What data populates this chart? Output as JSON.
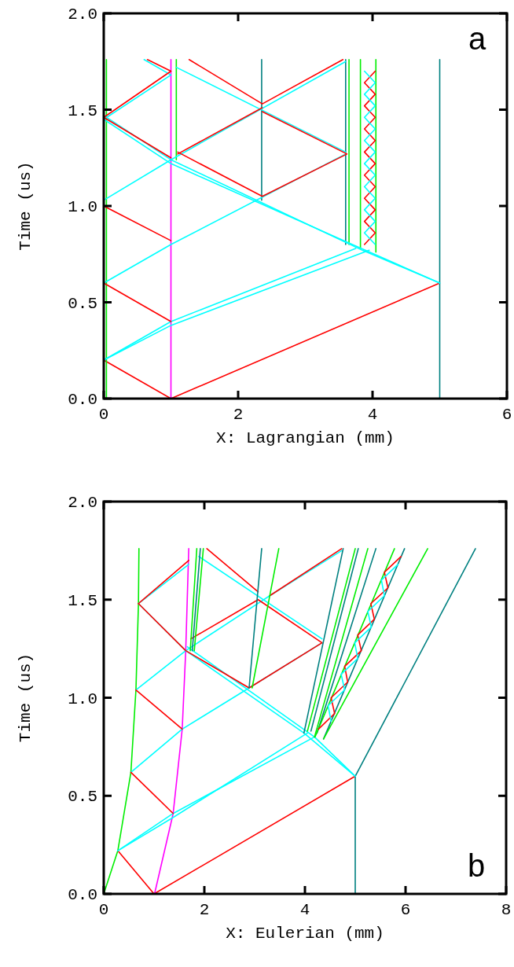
{
  "chart_data": [
    {
      "type": "line",
      "xlabel": "X: Lagrangian (mm)",
      "ylabel": "Time (us)",
      "xlim": [
        0,
        6
      ],
      "ylim": [
        0,
        2
      ],
      "xticks": [
        0,
        2,
        4,
        6
      ],
      "yticks": [
        {
          "value": 0,
          "label": "0.0"
        },
        {
          "value": 0.5,
          "label": "0.5"
        },
        {
          "value": 1,
          "label": "1.0"
        },
        {
          "value": 1.5,
          "label": "1.5"
        },
        {
          "value": 2,
          "label": "2.0"
        }
      ],
      "marker": "none",
      "line_style": "solid",
      "annotations": [
        "a"
      ],
      "series": [
        {
          "color": "#ff0000",
          "x": [
            1,
            5
          ],
          "values": [
            0,
            0.6
          ]
        },
        {
          "color": "#ff0000",
          "x": [
            1,
            0
          ],
          "values": [
            0,
            0.2
          ]
        },
        {
          "color": "#00ee00",
          "x": [
            0.04,
            0.04
          ],
          "values": [
            0,
            1.76
          ]
        },
        {
          "color": "#ff00ff",
          "x": [
            1,
            1
          ],
          "values": [
            0,
            1.76
          ]
        },
        {
          "color": "#008080",
          "x": [
            5,
            5
          ],
          "values": [
            0,
            1.76
          ]
        },
        {
          "color": "#008080",
          "x": [
            2.35,
            2.35
          ],
          "values": [
            1.03,
            1.76
          ]
        },
        {
          "color": "#008080",
          "x": [
            3.6,
            3.6
          ],
          "values": [
            0.8,
            1.76
          ]
        },
        {
          "color": "#00ee00",
          "x": [
            3.65,
            3.65
          ],
          "values": [
            0.8,
            1.76
          ]
        },
        {
          "color": "#00ee00",
          "x": [
            3.82,
            3.82
          ],
          "values": [
            0.78,
            1.76
          ]
        },
        {
          "color": "#00ee00",
          "x": [
            4.05,
            4.05
          ],
          "values": [
            0.76,
            1.76
          ]
        },
        {
          "color": "#00ee00",
          "x": [
            1.08,
            1.08
          ],
          "values": [
            1.24,
            1.76
          ]
        },
        {
          "color": "#00ffff",
          "x": [
            0,
            1,
            3.95
          ],
          "values": [
            0.2,
            0.38,
            0.77
          ]
        },
        {
          "color": "#00ffff",
          "x": [
            0,
            1,
            3.75
          ],
          "values": [
            0.2,
            0.4,
            0.78
          ]
        },
        {
          "color": "#00ffff",
          "x": [
            5,
            3.7,
            1,
            0
          ],
          "values": [
            0.6,
            0.8,
            1.22,
            1.45
          ]
        },
        {
          "color": "#00ffff",
          "x": [
            5,
            3.85,
            1,
            0
          ],
          "values": [
            0.6,
            0.77,
            1.24,
            1.47
          ]
        },
        {
          "color": "#00ffff",
          "x": [
            0,
            1,
            3.6
          ],
          "values": [
            0.6,
            0.8,
            1.27
          ]
        },
        {
          "color": "#00ffff",
          "x": [
            0,
            1,
            3.6
          ],
          "values": [
            1.03,
            1.24,
            1.75
          ]
        },
        {
          "color": "#00ffff",
          "x": [
            0,
            1
          ],
          "values": [
            1.45,
            1.68
          ]
        },
        {
          "color": "#00ffff",
          "x": [
            3.6,
            1.08
          ],
          "values": [
            1.28,
            1.72
          ]
        },
        {
          "color": "#00ffff",
          "x": [
            0.6,
            1
          ],
          "values": [
            1.76,
            1.68
          ]
        },
        {
          "color": "#ff0000",
          "x": [
            0.65,
            1
          ],
          "values": [
            1.76,
            1.7
          ]
        },
        {
          "color": "#ff0000",
          "x": [
            0,
            1
          ],
          "values": [
            0.6,
            0.4
          ]
        },
        {
          "color": "#ff0000",
          "x": [
            0,
            1
          ],
          "values": [
            1,
            0.82
          ]
        },
        {
          "color": "#ff0000",
          "x": [
            0,
            1
          ],
          "values": [
            1.46,
            1.25
          ]
        },
        {
          "color": "#ff0000",
          "x": [
            0,
            1
          ],
          "values": [
            1.46,
            1.7
          ]
        },
        {
          "color": "#ff0000",
          "x": [
            1.1,
            2.36,
            3.62,
            2.36
          ],
          "values": [
            1.28,
            1.05,
            1.27,
            1.49
          ]
        },
        {
          "color": "#ff0000",
          "x": [
            1.1,
            2.36
          ],
          "values": [
            1.27,
            1.51
          ]
        },
        {
          "color": "#ff0000",
          "x": [
            1.27,
            2.36,
            3.56
          ],
          "values": [
            1.76,
            1.53,
            1.76
          ]
        },
        {
          "color": "#ff0000",
          "x": [
            3.88,
            4.04,
            3.88,
            4.04,
            3.88,
            4.04,
            3.88,
            4.04,
            3.88,
            4.04,
            3.88,
            4.04,
            3.88,
            4.04,
            3.88,
            4.04
          ],
          "values": [
            0.8,
            0.86,
            0.92,
            0.98,
            1.04,
            1.1,
            1.16,
            1.22,
            1.28,
            1.34,
            1.4,
            1.46,
            1.52,
            1.58,
            1.64,
            1.7
          ]
        },
        {
          "color": "#00ffff",
          "x": [
            4.04,
            3.88,
            4.04,
            3.88,
            4.04,
            3.88,
            4.04,
            3.88,
            4.04,
            3.88,
            4.04,
            3.88,
            4.04,
            3.88,
            4.04,
            3.88
          ],
          "values": [
            0.8,
            0.86,
            0.92,
            0.98,
            1.04,
            1.1,
            1.16,
            1.22,
            1.28,
            1.34,
            1.4,
            1.46,
            1.52,
            1.58,
            1.64,
            1.7
          ]
        }
      ]
    },
    {
      "type": "line",
      "xlabel": "X: Eulerian (mm)",
      "ylabel": "Time (us)",
      "xlim": [
        0,
        8
      ],
      "ylim": [
        0,
        2
      ],
      "xticks": [
        0,
        2,
        4,
        6,
        8
      ],
      "yticks": [
        {
          "value": 0,
          "label": "0.0"
        },
        {
          "value": 0.5,
          "label": "0.5"
        },
        {
          "value": 1,
          "label": "1.0"
        },
        {
          "value": 1.5,
          "label": "1.5"
        },
        {
          "value": 2,
          "label": "2.0"
        }
      ],
      "marker": "none",
      "line_style": "solid",
      "annotations": [
        "b"
      ],
      "series": [
        {
          "color": "#ff0000",
          "x": [
            1,
            5
          ],
          "values": [
            0,
            0.6
          ]
        },
        {
          "color": "#ff0000",
          "x": [
            1,
            0.28
          ],
          "values": [
            0,
            0.22
          ]
        },
        {
          "color": "#00ee00",
          "x": [
            0,
            0.28,
            0.54,
            0.64,
            0.69,
            0.7
          ],
          "values": [
            0,
            0.22,
            0.62,
            1.04,
            1.48,
            1.76
          ]
        },
        {
          "color": "#ff00ff",
          "x": [
            1.01,
            1.38,
            1.56,
            1.63,
            1.69
          ],
          "values": [
            0,
            0.41,
            0.84,
            1.24,
            1.76
          ]
        },
        {
          "color": "#008080",
          "x": [
            5,
            5,
            7.39
          ],
          "values": [
            0,
            0.6,
            1.76
          ]
        },
        {
          "color": "#00ffff",
          "x": [
            0.28,
            1.38,
            4.19
          ],
          "values": [
            0.22,
            0.41,
            0.8
          ]
        },
        {
          "color": "#00ffff",
          "x": [
            0.28,
            1.38,
            4.05
          ],
          "values": [
            0.22,
            0.39,
            0.82
          ]
        },
        {
          "color": "#00ffff",
          "x": [
            5,
            3.98,
            1.63,
            0.69,
            1.69
          ],
          "values": [
            0.6,
            0.82,
            1.24,
            1.48,
            1.68
          ]
        },
        {
          "color": "#00ffff",
          "x": [
            5,
            4.19,
            1.66
          ],
          "values": [
            0.6,
            0.8,
            1.26
          ]
        },
        {
          "color": "#00ffff",
          "x": [
            0.54,
            1.56,
            2.89,
            4.34
          ],
          "values": [
            0.62,
            0.84,
            1.05,
            1.28
          ]
        },
        {
          "color": "#00ffff",
          "x": [
            0.64,
            1.63,
            3.3,
            4.73
          ],
          "values": [
            1.04,
            1.24,
            1.52,
            1.75
          ]
        },
        {
          "color": "#00ffff",
          "x": [
            1.89,
            4.34
          ],
          "values": [
            1.72,
            1.3
          ]
        },
        {
          "color": "#ff0000",
          "x": [
            0.54,
            1.38
          ],
          "values": [
            0.62,
            0.41
          ]
        },
        {
          "color": "#ff0000",
          "x": [
            0.64,
            1.56
          ],
          "values": [
            1.04,
            0.84
          ]
        },
        {
          "color": "#ff0000",
          "x": [
            0.69,
            1.63,
            2.89,
            4.34,
            3.07,
            1.73
          ],
          "values": [
            1.48,
            1.24,
            1.05,
            1.28,
            1.5,
            1.3
          ]
        },
        {
          "color": "#ff0000",
          "x": [
            0.69,
            1.69
          ],
          "values": [
            1.48,
            1.7
          ]
        },
        {
          "color": "#ff0000",
          "x": [
            2.05,
            3.07
          ],
          "values": [
            1.76,
            1.54
          ]
        },
        {
          "color": "#ff0000",
          "x": [
            3.3,
            4.73
          ],
          "values": [
            1.52,
            1.76
          ]
        },
        {
          "color": "#008080",
          "x": [
            2.89,
            3.14
          ],
          "values": [
            1.05,
            1.76
          ]
        },
        {
          "color": "#00ee00",
          "x": [
            2.95,
            3.48
          ],
          "values": [
            1.05,
            1.76
          ]
        },
        {
          "color": "#00ee00",
          "x": [
            1.72,
            1.85
          ],
          "values": [
            1.24,
            1.76
          ]
        },
        {
          "color": "#008080",
          "x": [
            1.76,
            1.92
          ],
          "values": [
            1.24,
            1.76
          ]
        },
        {
          "color": "#00ee00",
          "x": [
            1.8,
            1.98
          ],
          "values": [
            1.24,
            1.76
          ]
        },
        {
          "color": "#008080",
          "x": [
            3.98,
            4.76
          ],
          "values": [
            0.82,
            1.76
          ]
        },
        {
          "color": "#00ee00",
          "x": [
            4.05,
            5
          ],
          "values": [
            0.83,
            1.76
          ]
        },
        {
          "color": "#008080",
          "x": [
            4.12,
            5.06
          ],
          "values": [
            0.83,
            1.76
          ]
        },
        {
          "color": "#00ee00",
          "x": [
            4.19,
            5.25
          ],
          "values": [
            0.8,
            1.76
          ]
        },
        {
          "color": "#008080",
          "x": [
            4.24,
            5.41
          ],
          "values": [
            0.82,
            1.76
          ]
        },
        {
          "color": "#00ee00",
          "x": [
            4.2,
            5.78
          ],
          "values": [
            0.8,
            1.76
          ]
        },
        {
          "color": "#008080",
          "x": [
            4.37,
            5.98
          ],
          "values": [
            0.79,
            1.76
          ]
        },
        {
          "color": "#00ee00",
          "x": [
            4.37,
            6.44
          ],
          "values": [
            0.79,
            1.76
          ]
        },
        {
          "color": "#ff0000",
          "x": [
            4.27,
            4.59,
            4.52,
            4.85,
            4.79,
            5.12,
            5.05,
            5.38,
            5.31,
            5.65,
            5.58,
            5.91
          ],
          "values": [
            0.84,
            0.92,
            1,
            1.08,
            1.16,
            1.24,
            1.32,
            1.4,
            1.48,
            1.56,
            1.64,
            1.72
          ]
        },
        {
          "color": "#00ffff",
          "x": [
            4.52,
            4.46,
            4.79,
            4.72,
            5.05,
            4.99,
            5.32,
            5.25,
            5.58,
            5.52,
            5.85
          ],
          "values": [
            0.88,
            0.96,
            1.04,
            1.12,
            1.2,
            1.28,
            1.36,
            1.44,
            1.52,
            1.6,
            1.68
          ]
        }
      ]
    }
  ]
}
